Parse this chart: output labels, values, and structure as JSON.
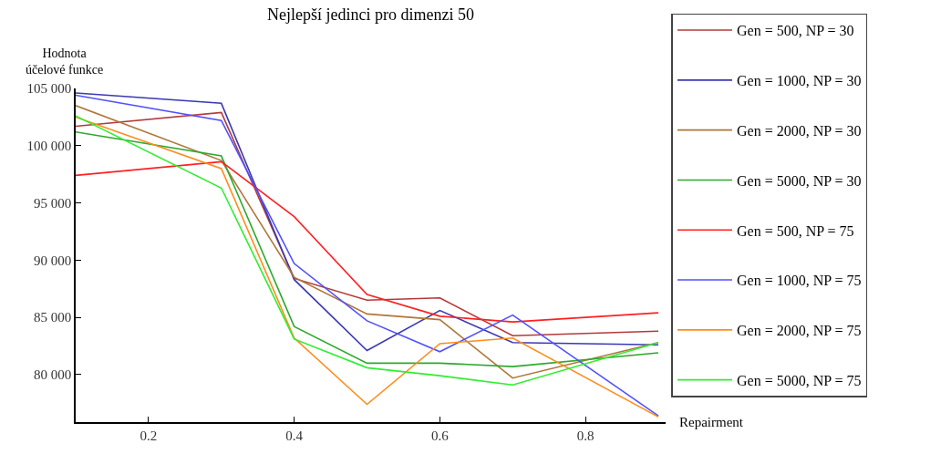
{
  "chart_data": {
    "type": "line",
    "title": "Nejlepší jedinci pro dimenzi 50",
    "xlabel": "Repairment",
    "ylabel": "Hodnota\núčelové funkce",
    "x": [
      0.1,
      0.3,
      0.4,
      0.5,
      0.6,
      0.7,
      0.9
    ],
    "xlim": [
      0.1,
      0.91
    ],
    "xticks": [
      0.2,
      0.4,
      0.6,
      0.8
    ],
    "ylim": [
      75850,
      105000
    ],
    "yticks": [
      {
        "value": 80000,
        "label": "80 000"
      },
      {
        "value": 85000,
        "label": "85 000"
      },
      {
        "value": 90000,
        "label": "90 000"
      },
      {
        "value": 95000,
        "label": "95 000"
      },
      {
        "value": 100000,
        "label": "100 000"
      },
      {
        "value": 105000,
        "label": "105 000"
      }
    ],
    "legend": "right",
    "marker": "none",
    "line_style": "solid",
    "series": [
      {
        "name": "Gen = 500, NP = 30",
        "color": "#b23a3a",
        "values": [
          101700,
          102900,
          88400,
          86500,
          86700,
          83400,
          83800
        ]
      },
      {
        "name": "Gen = 1000, NP = 30",
        "color": "#3a3ab2",
        "values": [
          104600,
          103700,
          88300,
          82100,
          85600,
          82800,
          82600
        ]
      },
      {
        "name": "Gen = 2000, NP = 30",
        "color": "#b0773a",
        "values": [
          103500,
          98700,
          88500,
          85300,
          84800,
          79700,
          82800
        ]
      },
      {
        "name": "Gen = 5000, NP = 30",
        "color": "#2ea82e",
        "values": [
          101200,
          99100,
          84200,
          81000,
          81000,
          80700,
          81900
        ]
      },
      {
        "name": "Gen = 500, NP = 75",
        "color": "#ff2020",
        "values": [
          97400,
          98600,
          93800,
          87000,
          85100,
          84600,
          85400
        ]
      },
      {
        "name": "Gen = 1000, NP = 75",
        "color": "#5050ff",
        "values": [
          104400,
          102200,
          89700,
          84700,
          82000,
          85200,
          76400
        ]
      },
      {
        "name": "Gen = 2000, NP = 75",
        "color": "#ff8c1a",
        "values": [
          102500,
          98000,
          83200,
          77400,
          82700,
          83200,
          76300
        ]
      },
      {
        "name": "Gen = 5000, NP = 75",
        "color": "#30ee30",
        "values": [
          102600,
          96300,
          83100,
          80600,
          79900,
          79100,
          82800
        ]
      }
    ]
  }
}
